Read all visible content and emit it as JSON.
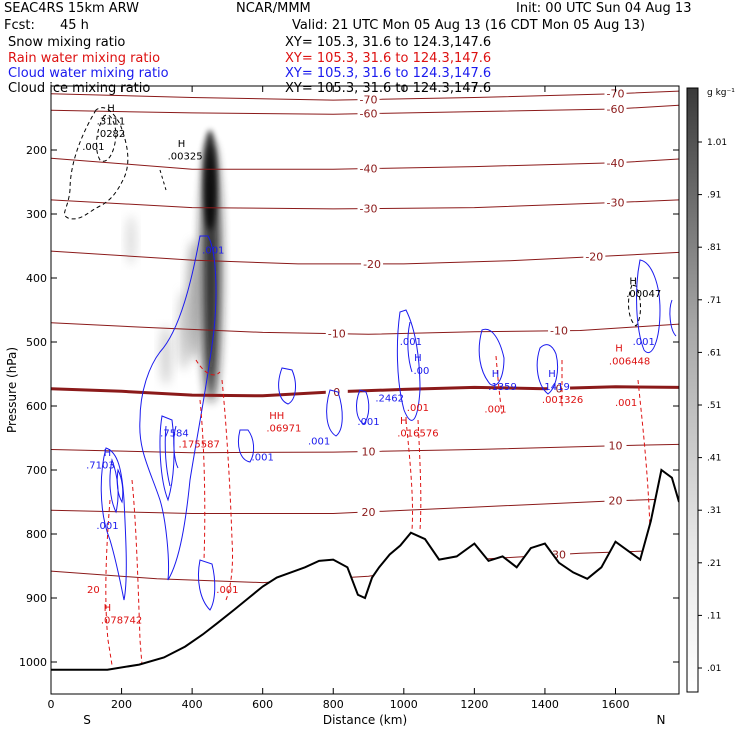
{
  "header": {
    "model": "SEAC4RS 15km ARW",
    "org": "NCAR/MMM",
    "init": "Init: 00 UTC Sun 04 Aug 13",
    "fcst_label": "Fcst:",
    "fcst_value": "45 h",
    "valid": "Valid: 21 UTC Mon 05 Aug 13 (16 CDT Mon 05 Aug 13)",
    "fields": [
      {
        "name": "Snow mixing ratio",
        "xy": "XY= 105.3, 31.6 to 124.3,147.6",
        "color": "#000000"
      },
      {
        "name": "Rain water mixing ratio",
        "xy": "XY= 105.3, 31.6 to 124.3,147.6",
        "color": "#dd1111"
      },
      {
        "name": "Cloud water mixing ratio",
        "xy": "XY= 105.3, 31.6 to 124.3,147.6",
        "color": "#1a1aee"
      },
      {
        "name": "Cloud ice mixing ratio",
        "xy": "XY= 105.3, 31.6 to 124.3,147.6",
        "color": "#000000"
      }
    ]
  },
  "chart_data": {
    "type": "cross-section",
    "xlabel": "Distance (km)",
    "ylabel": "Pressure (hPa)",
    "xlim": [
      0,
      1780
    ],
    "ylim": [
      1050,
      100
    ],
    "x_ticks": [
      0,
      200,
      400,
      600,
      800,
      1000,
      1200,
      1400,
      1600
    ],
    "y_ticks": [
      200,
      300,
      400,
      500,
      600,
      700,
      800,
      900,
      1000
    ],
    "end_labels": {
      "left": "S",
      "right": "N"
    },
    "colorbar": {
      "unit": "g kg⁻¹",
      "ticks": [
        "1.01",
        ".91",
        ".81",
        ".71",
        ".61",
        ".51",
        ".41",
        ".31",
        ".21",
        ".11",
        ".01"
      ]
    },
    "terrain": [
      [
        0,
        1012
      ],
      [
        80,
        1012
      ],
      [
        160,
        1012
      ],
      [
        250,
        1004
      ],
      [
        320,
        993
      ],
      [
        380,
        976
      ],
      [
        430,
        957
      ],
      [
        470,
        940
      ],
      [
        520,
        918
      ],
      [
        560,
        900
      ],
      [
        600,
        882
      ],
      [
        640,
        868
      ],
      [
        680,
        860
      ],
      [
        720,
        852
      ],
      [
        760,
        842
      ],
      [
        800,
        840
      ],
      [
        840,
        852
      ],
      [
        870,
        895
      ],
      [
        890,
        900
      ],
      [
        910,
        868
      ],
      [
        930,
        852
      ],
      [
        960,
        832
      ],
      [
        990,
        818
      ],
      [
        1020,
        798
      ],
      [
        1060,
        808
      ],
      [
        1100,
        840
      ],
      [
        1150,
        835
      ],
      [
        1200,
        815
      ],
      [
        1240,
        842
      ],
      [
        1280,
        835
      ],
      [
        1320,
        852
      ],
      [
        1360,
        822
      ],
      [
        1400,
        815
      ],
      [
        1440,
        845
      ],
      [
        1480,
        860
      ],
      [
        1520,
        870
      ],
      [
        1560,
        852
      ],
      [
        1600,
        812
      ],
      [
        1640,
        828
      ],
      [
        1670,
        840
      ],
      [
        1700,
        780
      ],
      [
        1730,
        700
      ],
      [
        1760,
        712
      ],
      [
        1780,
        750
      ]
    ],
    "temperature_contours": [
      {
        "level": 0,
        "label": "0",
        "points": [
          [
            0,
            573
          ],
          [
            200,
            577
          ],
          [
            400,
            583
          ],
          [
            600,
            584
          ],
          [
            800,
            578
          ],
          [
            1000,
            574
          ],
          [
            1200,
            571
          ],
          [
            1400,
            573
          ],
          [
            1600,
            570
          ],
          [
            1780,
            571
          ]
        ]
      },
      {
        "level": -10,
        "label": "-10",
        "points": [
          [
            0,
            470
          ],
          [
            300,
            478
          ],
          [
            600,
            485
          ],
          [
            900,
            488
          ],
          [
            1200,
            484
          ],
          [
            1500,
            482
          ],
          [
            1780,
            472
          ]
        ]
      },
      {
        "level": -20,
        "label": "-20",
        "points": [
          [
            0,
            358
          ],
          [
            400,
            372
          ],
          [
            700,
            378
          ],
          [
            1000,
            378
          ],
          [
            1300,
            373
          ],
          [
            1600,
            365
          ],
          [
            1780,
            360
          ]
        ]
      },
      {
        "level": -30,
        "label": "-30",
        "points": [
          [
            0,
            278
          ],
          [
            400,
            290
          ],
          [
            800,
            292
          ],
          [
            1200,
            290
          ],
          [
            1600,
            282
          ],
          [
            1780,
            278
          ]
        ]
      },
      {
        "level": -40,
        "label": "-40",
        "points": [
          [
            0,
            213
          ],
          [
            400,
            230
          ],
          [
            800,
            230
          ],
          [
            1200,
            226
          ],
          [
            1600,
            220
          ],
          [
            1780,
            214
          ]
        ]
      },
      {
        "level": -60,
        "label": "-60",
        "points": [
          [
            0,
            138
          ],
          [
            400,
            142
          ],
          [
            800,
            144
          ],
          [
            1200,
            140
          ],
          [
            1600,
            136
          ],
          [
            1780,
            130
          ]
        ]
      },
      {
        "level": -70,
        "label": "-70",
        "points": [
          [
            0,
            112
          ],
          [
            400,
            118
          ],
          [
            800,
            122
          ],
          [
            1200,
            118
          ],
          [
            1600,
            112
          ],
          [
            1780,
            108
          ]
        ]
      },
      {
        "level": 10,
        "label": "10",
        "points": [
          [
            0,
            668
          ],
          [
            400,
            673
          ],
          [
            800,
            672
          ],
          [
            1200,
            668
          ],
          [
            1600,
            662
          ],
          [
            1780,
            660
          ]
        ]
      },
      {
        "level": 20,
        "label": "20",
        "points": [
          [
            0,
            763
          ],
          [
            400,
            768
          ],
          [
            800,
            768
          ],
          [
            1200,
            758
          ],
          [
            1600,
            748
          ],
          [
            1780,
            745
          ]
        ]
      },
      {
        "level": 30,
        "label": "30",
        "points": [
          [
            0,
            858
          ],
          [
            300,
            870
          ],
          [
            600,
            876
          ],
          [
            900,
            866
          ],
          [
            1200,
            840
          ],
          [
            1500,
            830
          ],
          [
            1780,
            825
          ]
        ]
      }
    ],
    "annotations": [
      {
        "text": "H",
        "x": 170,
        "p": 140,
        "series": "snow"
      },
      {
        "text": ".3111",
        "x": 170,
        "p": 160,
        "series": "snow"
      },
      {
        "text": ".0282",
        "x": 170,
        "p": 180,
        "series": "snow"
      },
      {
        "text": "H",
        "x": 370,
        "p": 195,
        "series": "snow"
      },
      {
        "text": ".00325",
        "x": 380,
        "p": 215,
        "series": "snow"
      },
      {
        "text": ".001",
        "x": 120,
        "p": 200,
        "series": "snow"
      },
      {
        "text": ".001",
        "x": 460,
        "p": 362,
        "series": "cloud"
      },
      {
        "text": ".7584",
        "x": 350,
        "p": 648,
        "series": "cloud"
      },
      {
        "text": "H",
        "x": 160,
        "p": 678,
        "series": "cloud"
      },
      {
        "text": ".7103",
        "x": 140,
        "p": 698,
        "series": "cloud"
      },
      {
        "text": ".001",
        "x": 160,
        "p": 792,
        "series": "cloud"
      },
      {
        "text": ".001",
        "x": 600,
        "p": 685,
        "series": "cloud"
      },
      {
        "text": ".001",
        "x": 760,
        "p": 660,
        "series": "cloud"
      },
      {
        "text": ".001",
        "x": 900,
        "p": 630,
        "series": "cloud"
      },
      {
        "text": ".001",
        "x": 1020,
        "p": 505,
        "series": "cloud"
      },
      {
        "text": "H",
        "x": 1040,
        "p": 530,
        "series": "cloud"
      },
      {
        "text": ".00",
        "x": 1050,
        "p": 550,
        "series": "cloud"
      },
      {
        "text": ".2462",
        "x": 960,
        "p": 593,
        "series": "cloud"
      },
      {
        "text": "H",
        "x": 1260,
        "p": 555,
        "series": "cloud"
      },
      {
        "text": ".1359",
        "x": 1280,
        "p": 575,
        "series": "cloud"
      },
      {
        "text": "H",
        "x": 1420,
        "p": 555,
        "series": "cloud"
      },
      {
        "text": ".1419",
        "x": 1430,
        "p": 575,
        "series": "cloud"
      },
      {
        "text": "H",
        "x": 1650,
        "p": 410,
        "series": "snow"
      },
      {
        "text": ".00047",
        "x": 1680,
        "p": 430,
        "series": "snow"
      },
      {
        "text": ".001",
        "x": 1680,
        "p": 505,
        "series": "cloud"
      },
      {
        "text": "H",
        "x": 1610,
        "p": 515,
        "series": "rain"
      },
      {
        "text": ".006448",
        "x": 1640,
        "p": 535,
        "series": "rain"
      },
      {
        "text": ".001",
        "x": 1630,
        "p": 600,
        "series": "rain"
      },
      {
        "text": "HH",
        "x": 640,
        "p": 620,
        "series": "rain"
      },
      {
        "text": ".06971",
        "x": 660,
        "p": 640,
        "series": "rain"
      },
      {
        "text": ".175587",
        "x": 420,
        "p": 665,
        "series": "rain"
      },
      {
        "text": "H",
        "x": 1000,
        "p": 628,
        "series": "rain"
      },
      {
        "text": ".016576",
        "x": 1040,
        "p": 648,
        "series": "rain"
      },
      {
        "text": ".001",
        "x": 1040,
        "p": 608,
        "series": "rain"
      },
      {
        "text": ".001",
        "x": 1260,
        "p": 610,
        "series": "rain"
      },
      {
        "text": ".001326",
        "x": 1450,
        "p": 595,
        "series": "rain"
      },
      {
        "text": ".001",
        "x": 500,
        "p": 892,
        "series": "rain"
      },
      {
        "text": "H",
        "x": 160,
        "p": 920,
        "series": "rain"
      },
      {
        "text": ".078742",
        "x": 200,
        "p": 940,
        "series": "rain"
      },
      {
        "text": "20",
        "x": 120,
        "p": 892,
        "series": "rain"
      }
    ]
  }
}
